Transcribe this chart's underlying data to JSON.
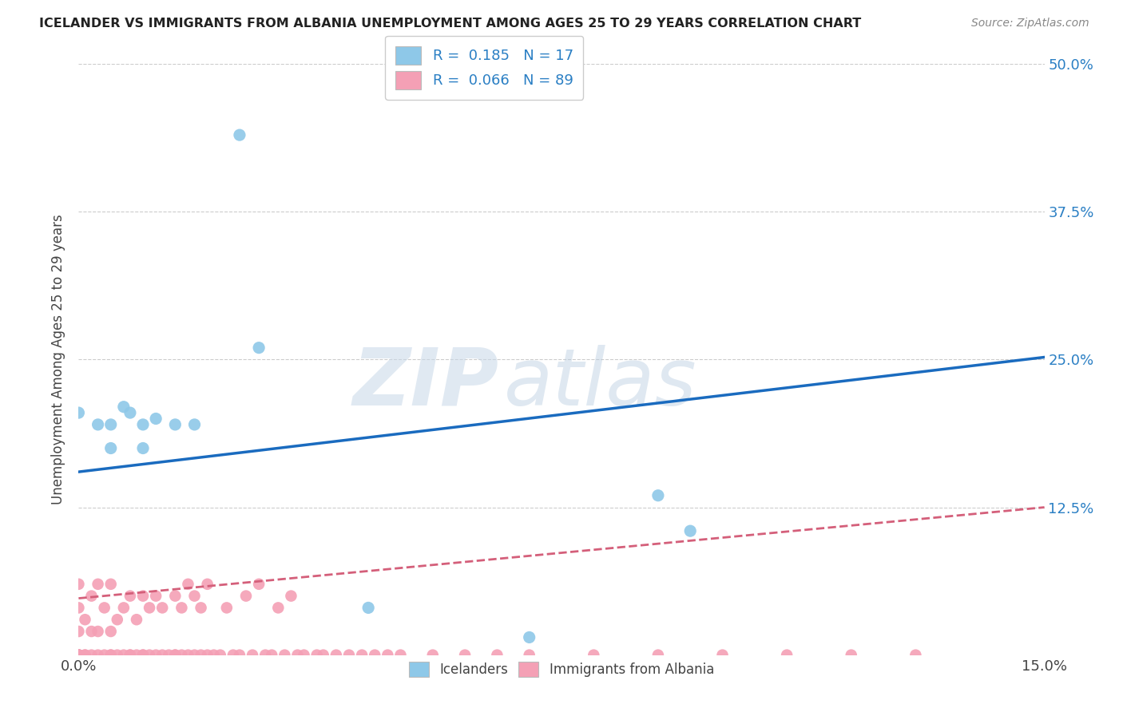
{
  "title": "ICELANDER VS IMMIGRANTS FROM ALBANIA UNEMPLOYMENT AMONG AGES 25 TO 29 YEARS CORRELATION CHART",
  "source": "Source: ZipAtlas.com",
  "ylabel": "Unemployment Among Ages 25 to 29 years",
  "xlim": [
    0.0,
    0.15
  ],
  "ylim": [
    0.0,
    0.5
  ],
  "yticks": [
    0.0,
    0.125,
    0.25,
    0.375,
    0.5
  ],
  "ytick_labels": [
    "",
    "12.5%",
    "25.0%",
    "37.5%",
    "50.0%"
  ],
  "xticks": [
    0.0,
    0.15
  ],
  "xtick_labels": [
    "0.0%",
    "15.0%"
  ],
  "icelanders_R": 0.185,
  "icelanders_N": 17,
  "albania_R": 0.066,
  "albania_N": 89,
  "icelanders_color": "#8ec8e8",
  "albania_color": "#f4a0b5",
  "icelanders_line_color": "#1a6bbf",
  "albania_line_color": "#d45f7a",
  "watermark_zip": "ZIP",
  "watermark_atlas": "atlas",
  "background_color": "#ffffff",
  "icelanders_x": [
    0.025,
    0.028,
    0.0,
    0.003,
    0.005,
    0.005,
    0.007,
    0.008,
    0.01,
    0.01,
    0.012,
    0.015,
    0.018,
    0.09,
    0.095,
    0.07,
    0.045
  ],
  "icelanders_y": [
    0.44,
    0.26,
    0.205,
    0.195,
    0.195,
    0.175,
    0.21,
    0.205,
    0.195,
    0.175,
    0.2,
    0.195,
    0.195,
    0.135,
    0.105,
    0.015,
    0.04
  ],
  "albania_x": [
    0.0,
    0.0,
    0.0,
    0.0,
    0.0,
    0.0,
    0.0,
    0.0,
    0.0,
    0.001,
    0.001,
    0.001,
    0.002,
    0.002,
    0.002,
    0.003,
    0.003,
    0.003,
    0.004,
    0.004,
    0.005,
    0.005,
    0.005,
    0.005,
    0.006,
    0.006,
    0.007,
    0.007,
    0.008,
    0.008,
    0.008,
    0.009,
    0.009,
    0.01,
    0.01,
    0.01,
    0.011,
    0.011,
    0.012,
    0.012,
    0.013,
    0.013,
    0.014,
    0.015,
    0.015,
    0.015,
    0.016,
    0.016,
    0.017,
    0.017,
    0.018,
    0.018,
    0.019,
    0.019,
    0.02,
    0.02,
    0.021,
    0.022,
    0.023,
    0.024,
    0.025,
    0.026,
    0.027,
    0.028,
    0.029,
    0.03,
    0.031,
    0.032,
    0.033,
    0.034,
    0.035,
    0.037,
    0.038,
    0.04,
    0.042,
    0.044,
    0.046,
    0.048,
    0.05,
    0.055,
    0.06,
    0.065,
    0.07,
    0.08,
    0.09,
    0.1,
    0.11,
    0.12,
    0.13
  ],
  "albania_y": [
    0.0,
    0.0,
    0.0,
    0.0,
    0.0,
    0.0,
    0.02,
    0.04,
    0.06,
    0.0,
    0.0,
    0.03,
    0.0,
    0.02,
    0.05,
    0.0,
    0.02,
    0.06,
    0.0,
    0.04,
    0.0,
    0.0,
    0.02,
    0.06,
    0.0,
    0.03,
    0.0,
    0.04,
    0.0,
    0.0,
    0.05,
    0.0,
    0.03,
    0.0,
    0.0,
    0.05,
    0.0,
    0.04,
    0.0,
    0.05,
    0.0,
    0.04,
    0.0,
    0.0,
    0.0,
    0.05,
    0.0,
    0.04,
    0.0,
    0.06,
    0.0,
    0.05,
    0.0,
    0.04,
    0.0,
    0.06,
    0.0,
    0.0,
    0.04,
    0.0,
    0.0,
    0.05,
    0.0,
    0.06,
    0.0,
    0.0,
    0.04,
    0.0,
    0.05,
    0.0,
    0.0,
    0.0,
    0.0,
    0.0,
    0.0,
    0.0,
    0.0,
    0.0,
    0.0,
    0.0,
    0.0,
    0.0,
    0.0,
    0.0,
    0.0,
    0.0,
    0.0,
    0.0,
    0.0
  ],
  "ice_line_x0": 0.0,
  "ice_line_y0": 0.155,
  "ice_line_x1": 0.15,
  "ice_line_y1": 0.252,
  "alb_line_x0": 0.0,
  "alb_line_y0": 0.048,
  "alb_line_x1": 0.15,
  "alb_line_y1": 0.125
}
